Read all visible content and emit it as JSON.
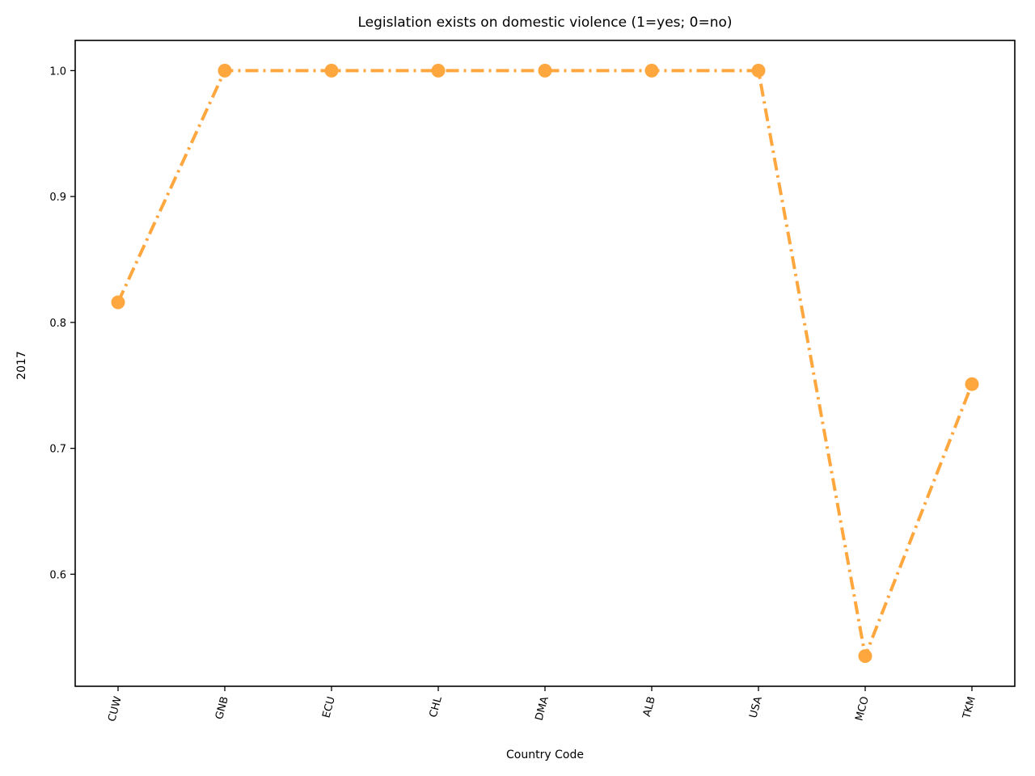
{
  "chart_data": {
    "type": "line",
    "title": "Legislation exists on domestic violence (1=yes; 0=no)",
    "xlabel": "Country Code",
    "ylabel": "2017",
    "categories": [
      "CUW",
      "GNB",
      "ECU",
      "CHL",
      "DMA",
      "ALB",
      "USA",
      "MCO",
      "TKM"
    ],
    "series": [
      {
        "values": [
          0.816,
          1.0,
          1.0,
          1.0,
          1.0,
          1.0,
          1.0,
          0.535,
          0.751
        ],
        "color": "#ffa73f",
        "line_style": "dash-dot",
        "marker": "circle"
      }
    ],
    "yticks": [
      "0.6",
      "0.7",
      "0.8",
      "0.9",
      "1.0"
    ],
    "ytick_values": [
      0.6,
      0.7,
      0.8,
      0.9,
      1.0
    ],
    "ylim": [
      0.511,
      1.024
    ],
    "grid": false,
    "legend": "none",
    "xtick_rotation": "75 degrees"
  }
}
